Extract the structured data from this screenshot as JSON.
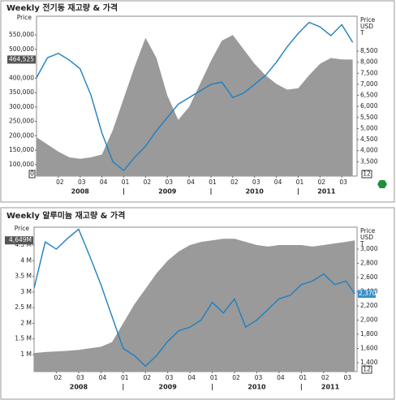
{
  "chart_data": [
    {
      "type": "area-line",
      "title": "Weekly 전기동 재고량 & 가격",
      "ylabel": "Price",
      "y2label": [
        "Price",
        "USD",
        "T"
      ],
      "x": [
        0,
        0.5,
        1,
        1.5,
        2,
        2.5,
        3,
        3.5,
        4,
        4.5,
        5,
        5.5,
        6,
        6.5,
        7,
        7.5,
        8,
        8.5,
        9,
        9.5,
        10,
        10.5,
        11,
        11.5,
        12,
        12.5,
        13,
        13.5,
        14,
        14.5
      ],
      "series": [
        {
          "kind": "area",
          "color": "#9a9a9a",
          "values": [
            195000,
            170000,
            145000,
            125000,
            120000,
            125000,
            135000,
            220000,
            330000,
            440000,
            540000,
            470000,
            340000,
            255000,
            300000,
            380000,
            460000,
            530000,
            550000,
            500000,
            450000,
            410000,
            380000,
            360000,
            365000,
            410000,
            450000,
            470000,
            465000,
            464525
          ]
        },
        {
          "kind": "line",
          "axis": "y2",
          "color": "#1f7fc0",
          "values": [
            7300,
            8200,
            8400,
            8100,
            7700,
            6500,
            4800,
            3500,
            3100,
            3700,
            4200,
            4900,
            5500,
            6100,
            6400,
            6700,
            7000,
            7100,
            6400,
            6600,
            7000,
            7400,
            8000,
            8700,
            9300,
            9800,
            9600,
            9200,
            9700,
            8900
          ]
        }
      ],
      "xlim": [
        0,
        14.7
      ],
      "xticks": [
        {
          "value": 1,
          "label": "02"
        },
        {
          "value": 2,
          "label": "03"
        },
        {
          "value": 3,
          "label": "04"
        },
        {
          "value": 4,
          "label": "01"
        },
        {
          "value": 5,
          "label": "02"
        },
        {
          "value": 6,
          "label": "03"
        },
        {
          "value": 7,
          "label": "04"
        },
        {
          "value": 8,
          "label": "01"
        },
        {
          "value": 9,
          "label": "02"
        },
        {
          "value": 10,
          "label": "03"
        },
        {
          "value": 11,
          "label": "04"
        },
        {
          "value": 12,
          "label": "01"
        },
        {
          "value": 13,
          "label": "02"
        },
        {
          "value": 14,
          "label": "03"
        }
      ],
      "xgroups": [
        {
          "value": 2,
          "label": "2008"
        },
        {
          "value": 6,
          "label": "2009"
        },
        {
          "value": 10,
          "label": "2010"
        },
        {
          "value": 13.3,
          "label": "2011"
        }
      ],
      "year_dividers": [
        4,
        8,
        12
      ],
      "ylim": [
        60000,
        615000
      ],
      "yticks": [
        {
          "value": 100000,
          "label": "100,000"
        },
        {
          "value": 150000,
          "label": "150,000"
        },
        {
          "value": 200000,
          "label": "200,000"
        },
        {
          "value": 250000,
          "label": "250,000"
        },
        {
          "value": 300000,
          "label": "300,000"
        },
        {
          "value": 350000,
          "label": "350,000"
        },
        {
          "value": 400000,
          "label": "400,000"
        },
        {
          "value": 500000,
          "label": "500,000"
        },
        {
          "value": 550000,
          "label": "550,000"
        }
      ],
      "y2lim": [
        2850,
        10080
      ],
      "y2ticks": [
        {
          "value": 3500,
          "label": "3,500"
        },
        {
          "value": 4000,
          "label": "4,000"
        },
        {
          "value": 4500,
          "label": "4,500"
        },
        {
          "value": 5000,
          "label": "5,000"
        },
        {
          "value": 5500,
          "label": "5,500"
        },
        {
          "value": 6000,
          "label": "6,000"
        },
        {
          "value": 6500,
          "label": "6,500"
        },
        {
          "value": 7000,
          "label": "7,000"
        },
        {
          "value": 7500,
          "label": "7,500"
        },
        {
          "value": 8000,
          "label": "8,000"
        },
        {
          "value": 8500,
          "label": "8,500"
        }
      ],
      "last_value": {
        "value": 464525,
        "label": "464,525"
      },
      "corner_labels": {
        "left": "0",
        "right": "12"
      }
    },
    {
      "type": "area-line",
      "title": "Weekly 알루미늄 재고량 & 가격",
      "ylabel": "Price",
      "y2label": [
        "Price",
        "USD",
        "T"
      ],
      "x": [
        0,
        0.5,
        1,
        1.5,
        2,
        2.5,
        3,
        3.5,
        4,
        4.5,
        5,
        5.5,
        6,
        6.5,
        7,
        7.5,
        8,
        8.5,
        9,
        9.5,
        10,
        10.5,
        11,
        11.5,
        12,
        12.5,
        13,
        13.5,
        14,
        14.4
      ],
      "series": [
        {
          "kind": "area",
          "color": "#9a9a9a",
          "values": [
            1.05,
            1.08,
            1.1,
            1.12,
            1.15,
            1.2,
            1.25,
            1.4,
            2.0,
            2.6,
            3.1,
            3.6,
            4.0,
            4.3,
            4.5,
            4.6,
            4.65,
            4.7,
            4.7,
            4.6,
            4.5,
            4.45,
            4.5,
            4.5,
            4.5,
            4.45,
            4.5,
            4.55,
            4.6,
            4.649
          ]
        },
        {
          "kind": "line",
          "axis": "y2",
          "color": "#1f7fc0",
          "values": [
            2450,
            3100,
            3000,
            3150,
            3280,
            2900,
            2500,
            2050,
            1600,
            1500,
            1350,
            1500,
            1700,
            1850,
            1900,
            2000,
            2250,
            2100,
            2300,
            1900,
            2000,
            2150,
            2300,
            2350,
            2500,
            2550,
            2650,
            2500,
            2550,
            2370
          ]
        }
      ],
      "xlim": [
        0,
        14.5
      ],
      "xticks": [
        {
          "value": 1,
          "label": "02"
        },
        {
          "value": 2,
          "label": "03"
        },
        {
          "value": 3,
          "label": "04"
        },
        {
          "value": 4,
          "label": "01"
        },
        {
          "value": 5,
          "label": "02"
        },
        {
          "value": 6,
          "label": "03"
        },
        {
          "value": 7,
          "label": "04"
        },
        {
          "value": 8,
          "label": "01"
        },
        {
          "value": 9,
          "label": "02"
        },
        {
          "value": 10,
          "label": "03"
        },
        {
          "value": 11,
          "label": "04"
        },
        {
          "value": 12,
          "label": "01"
        },
        {
          "value": 13,
          "label": "02"
        },
        {
          "value": 14,
          "label": "03"
        }
      ],
      "xgroups": [
        {
          "value": 2,
          "label": "2008"
        },
        {
          "value": 6,
          "label": "2009"
        },
        {
          "value": 10,
          "label": "2010"
        },
        {
          "value": 13.3,
          "label": "2011"
        }
      ],
      "year_dividers": [
        4,
        8,
        12
      ],
      "ylim": [
        0.456,
        5.07
      ],
      "yticks": [
        {
          "value": 1,
          "label": "1 M"
        },
        {
          "value": 1.5,
          "label": "1.5 M"
        },
        {
          "value": 2,
          "label": "2 M"
        },
        {
          "value": 2.5,
          "label": "2.5 M"
        },
        {
          "value": 3,
          "label": "3 M"
        },
        {
          "value": 3.5,
          "label": "3.5 M"
        },
        {
          "value": 4,
          "label": "4 M"
        },
        {
          "value": 4.5,
          "label": "4.5 M"
        }
      ],
      "y2lim": [
        1274,
        3309
      ],
      "y2ticks": [
        {
          "value": 1400,
          "label": "1,400"
        },
        {
          "value": 1600,
          "label": "1,600"
        },
        {
          "value": 1800,
          "label": "1,800"
        },
        {
          "value": 2000,
          "label": "2,000"
        },
        {
          "value": 2200,
          "label": "2,200"
        },
        {
          "value": 2400,
          "label": "2,400"
        },
        {
          "value": 2600,
          "label": "2,600"
        },
        {
          "value": 2800,
          "label": "2,800"
        },
        {
          "value": 3000,
          "label": "3,000"
        }
      ],
      "last_value": {
        "value": 4.649,
        "label": "4,649M"
      },
      "last_value2": {
        "value": 2370,
        "label": "2,370"
      },
      "corner_labels": {
        "right": "12"
      }
    }
  ]
}
